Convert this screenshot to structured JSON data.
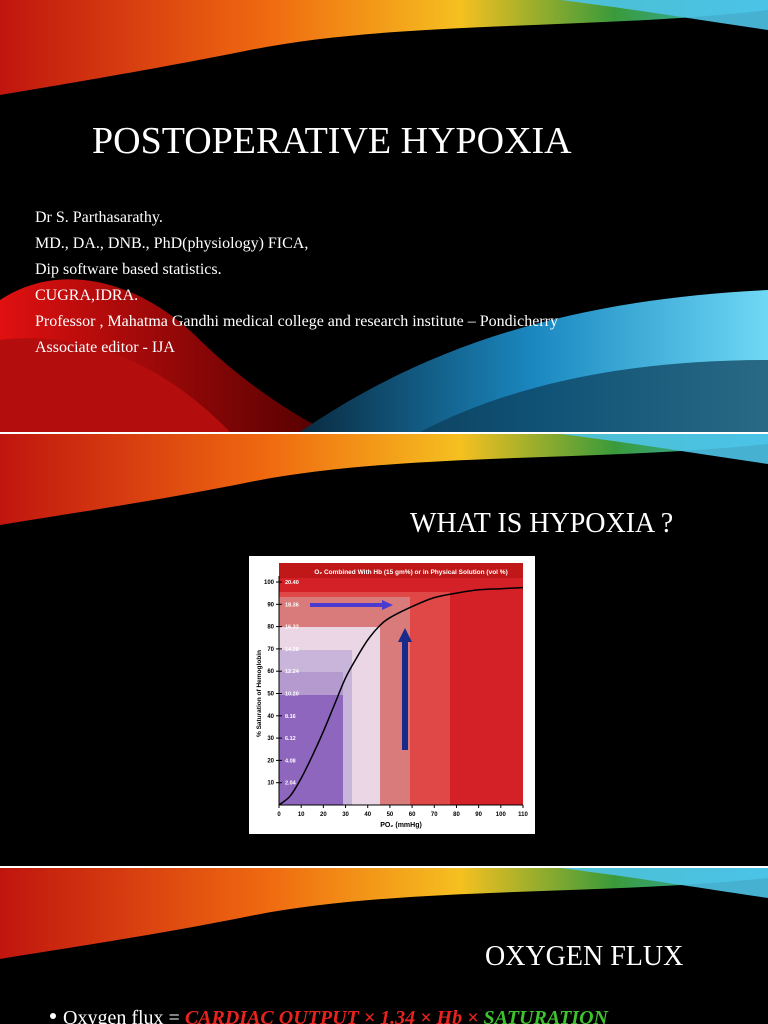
{
  "slides": [
    {
      "title": "POSTOPERATIVE HYPOXIA",
      "lines": [
        "Dr S. Parthasarathy.",
        " MD., DA., DNB., PhD(physiology) FICA,",
        " Dip software based statistics.",
        "CUGRA,IDRA.",
        "Professor , Mahatma Gandhi medical college and research institute – Pondicherry",
        "Associate editor - IJA"
      ]
    },
    {
      "title": "WHAT IS HYPOXIA ?",
      "figure": {
        "title": "O₂ Combined With Hb (15 gm%) or in Physical Solution (vol %)",
        "y_label": "% Saturation of Hemoglobin",
        "x_label": "PO₂ (mmHg)",
        "xlim": [
          0,
          110
        ],
        "xticks": [
          0,
          10,
          20,
          30,
          40,
          50,
          60,
          70,
          80,
          90,
          100,
          110
        ],
        "ylim": [
          0,
          100
        ],
        "yticks": [
          10,
          20,
          30,
          40,
          50,
          60,
          70,
          80,
          90,
          100
        ],
        "y2lim": [
          0,
          20.4
        ],
        "y2ticks": [
          2.04,
          4.08,
          6.12,
          8.16,
          {
            "value": 10.2,
            "label": "10.20"
          },
          12.24,
          14.28,
          16.32,
          18.36,
          {
            "value": 20.4,
            "label": "20.40"
          }
        ],
        "curve": {
          "x": [
            0,
            5,
            10,
            15,
            20,
            25,
            30,
            35,
            40,
            45,
            50,
            60,
            70,
            80,
            90,
            100,
            110
          ],
          "y": [
            0,
            4,
            12,
            22,
            33,
            45,
            57,
            66,
            74,
            80,
            84,
            89,
            93,
            95,
            96.5,
            97,
            97.5
          ]
        }
      }
    },
    {
      "title": "OXYGEN FLUX",
      "bullet": [
        "Oxygen flux = ",
        "CARDIAC OUTPUT × 1.34 × Hb × ",
        "SATURATION"
      ]
    }
  ]
}
